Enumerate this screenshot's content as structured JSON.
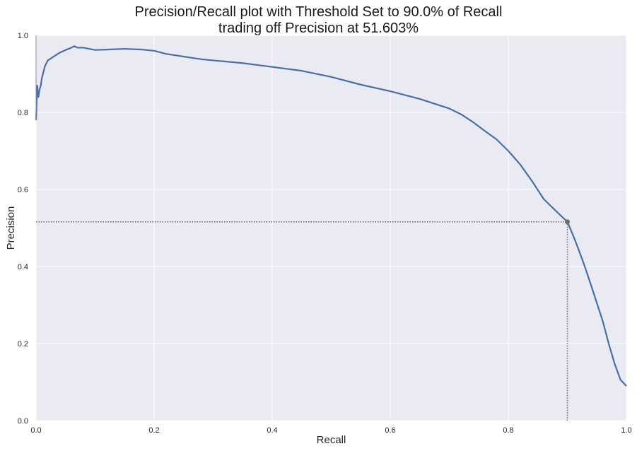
{
  "chart_data": {
    "type": "line",
    "title": [
      "Precision/Recall plot with Threshold Set to 90.0% of Recall",
      "trading off Precision at 51.603%"
    ],
    "xlabel": "Recall",
    "ylabel": "Precision",
    "xlim": [
      0,
      1
    ],
    "ylim": [
      0,
      1
    ],
    "xticks": [
      "0.0",
      "0.2",
      "0.4",
      "0.6",
      "0.8",
      "1.0"
    ],
    "yticks": [
      "0.0",
      "0.2",
      "0.4",
      "0.6",
      "0.8",
      "1.0"
    ],
    "grid": true,
    "colors": {
      "background": "#eaeaf2",
      "grid": "#ffffff",
      "curve": "#4c6ea4",
      "threshold": "#6e6e6e"
    },
    "series": [
      {
        "x": [
          0.0,
          0.002,
          0.004,
          0.006,
          0.008,
          0.01,
          0.015,
          0.02,
          0.025,
          0.03,
          0.04,
          0.05,
          0.06,
          0.065,
          0.07,
          0.08,
          0.09,
          0.1,
          0.12,
          0.15,
          0.18,
          0.2,
          0.22,
          0.25,
          0.28,
          0.3,
          0.35,
          0.4,
          0.45,
          0.5,
          0.55,
          0.6,
          0.65,
          0.7,
          0.72,
          0.74,
          0.76,
          0.78,
          0.8,
          0.82,
          0.84,
          0.86,
          0.88,
          0.9,
          0.91,
          0.92,
          0.93,
          0.94,
          0.95,
          0.96,
          0.97,
          0.98,
          0.99,
          1.0
        ],
        "y": [
          0.78,
          0.87,
          0.84,
          0.86,
          0.87,
          0.89,
          0.92,
          0.935,
          0.94,
          0.945,
          0.955,
          0.962,
          0.968,
          0.972,
          0.968,
          0.968,
          0.965,
          0.962,
          0.963,
          0.965,
          0.963,
          0.96,
          0.952,
          0.945,
          0.938,
          0.935,
          0.928,
          0.918,
          0.908,
          0.892,
          0.872,
          0.855,
          0.835,
          0.81,
          0.795,
          0.775,
          0.752,
          0.73,
          0.7,
          0.665,
          0.622,
          0.575,
          0.545,
          0.516,
          0.48,
          0.44,
          0.398,
          0.352,
          0.305,
          0.258,
          0.2,
          0.148,
          0.106,
          0.09
        ]
      }
    ],
    "threshold_point": {
      "x": 0.9,
      "y": 0.51603
    }
  }
}
